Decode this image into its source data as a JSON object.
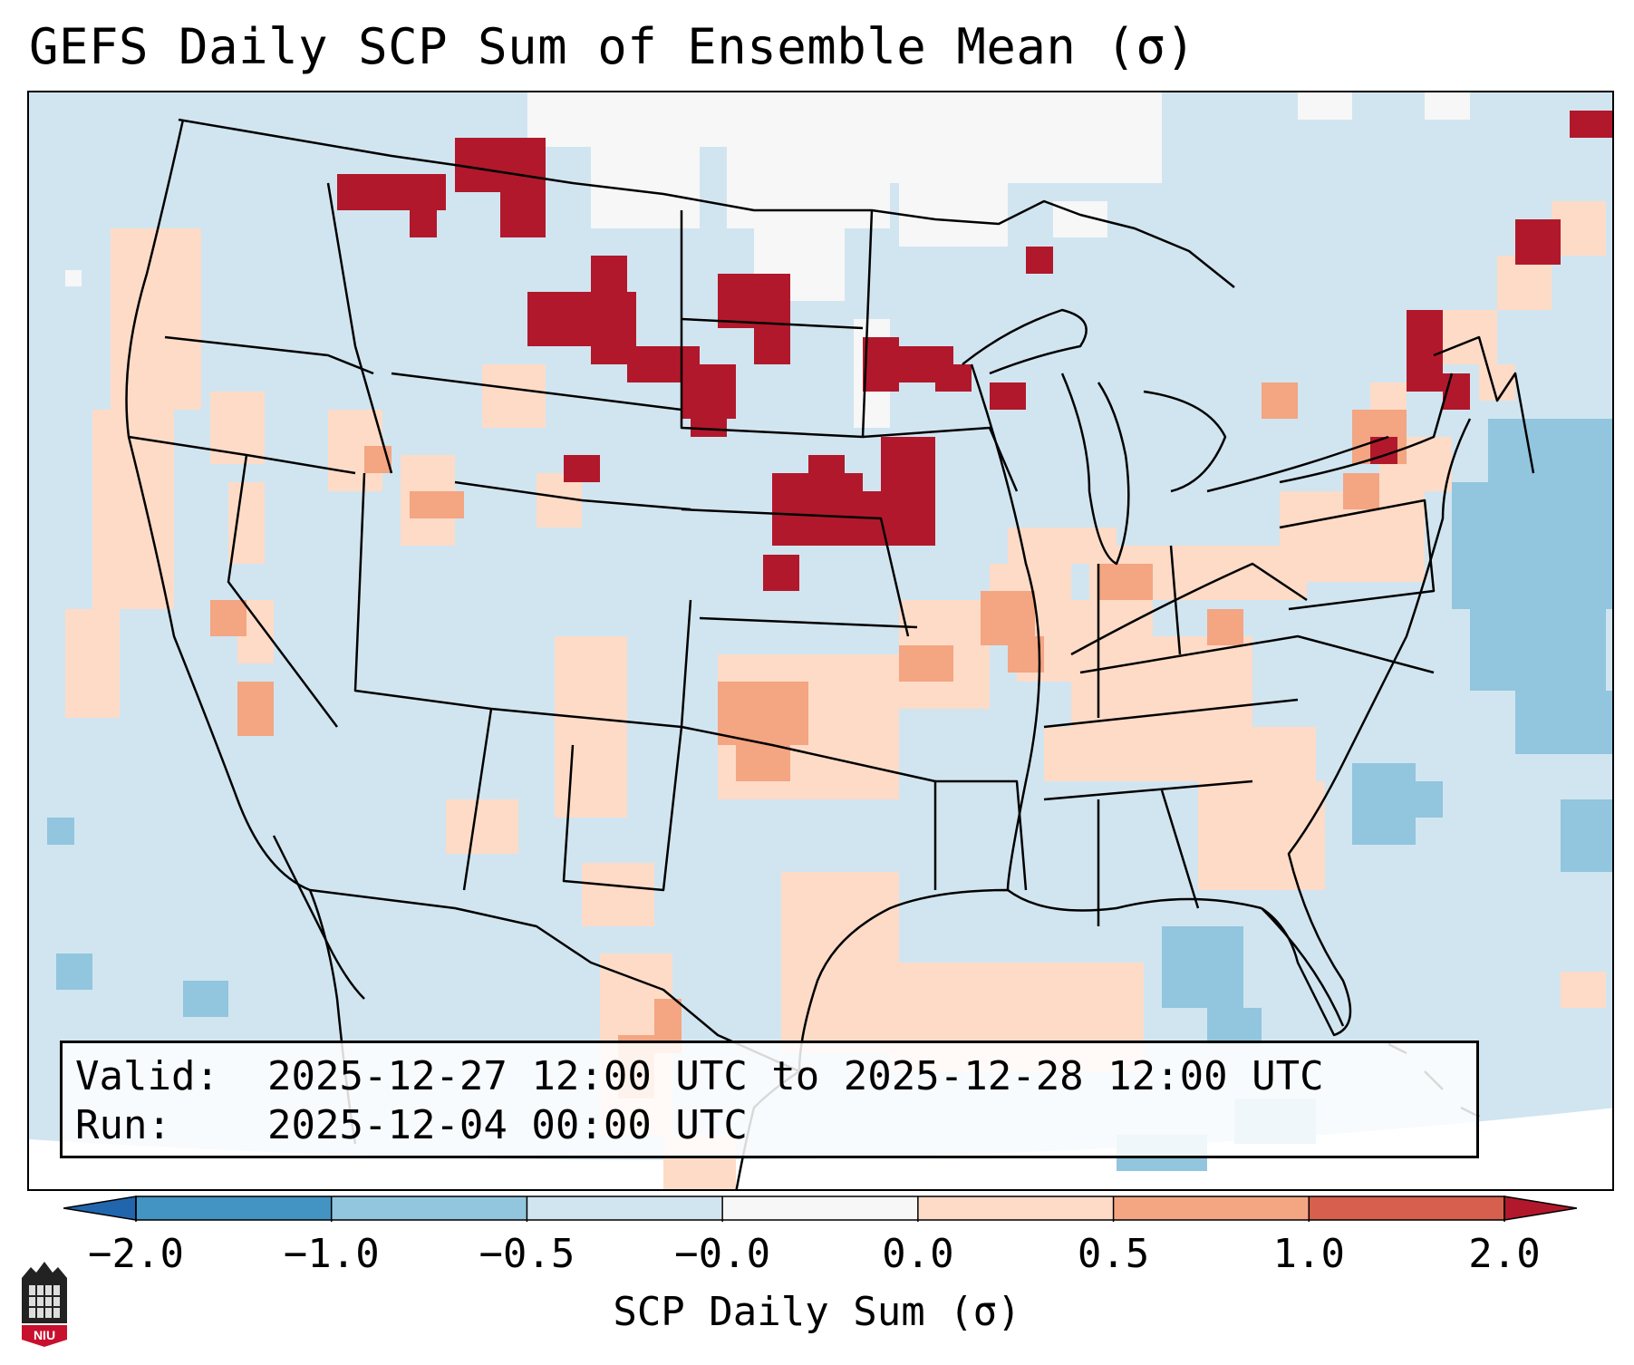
{
  "title": "GEFS Daily SCP Sum of Ensemble Mean (σ)",
  "info": {
    "valid_key": "Valid:",
    "valid_value": "2025-12-27 12:00 UTC to 2025-12-28 12:00 UTC",
    "run_key": "Run:",
    "run_value": "2025-12-04 00:00 UTC"
  },
  "colorbar": {
    "label": "SCP Daily Sum (σ)",
    "ticks": [
      "−2.0",
      "−1.0",
      "−0.5",
      "−0.0",
      "0.0",
      "0.5",
      "1.0",
      "2.0"
    ],
    "colors": [
      "#4393c3",
      "#92c5de",
      "#d1e5f0",
      "#f7f7f7",
      "#fddbc7",
      "#f4a582",
      "#d6604d"
    ],
    "extend_low_color": "#2166ac",
    "extend_high_color": "#b2182b"
  },
  "map": {
    "background_color": "#d1e5f0",
    "outside_color": "#ffffff",
    "line_color": "#000000"
  },
  "logo": {
    "text": "NIU",
    "icon": "niu-university-logo-icon"
  }
}
